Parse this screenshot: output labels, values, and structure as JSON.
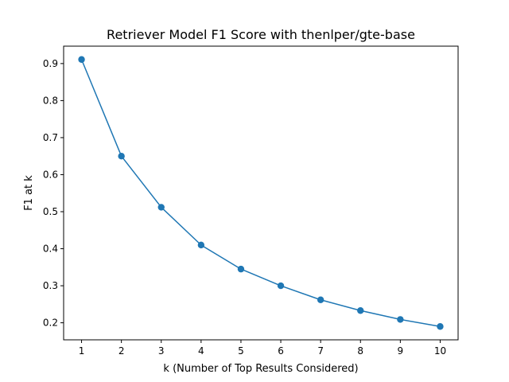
{
  "chart_data": {
    "type": "line",
    "title": "Retriever Model F1 Score with thenlper/gte-base",
    "xlabel": "k (Number of Top Results Considered)",
    "ylabel": "F1 at k",
    "x": [
      1,
      2,
      3,
      4,
      5,
      6,
      7,
      8,
      9,
      10
    ],
    "series": [
      {
        "values": [
          0.911,
          0.65,
          0.512,
          0.41,
          0.345,
          0.3,
          0.262,
          0.233,
          0.209,
          0.19
        ],
        "color": "#1f77b4",
        "marker": "circle"
      }
    ],
    "xlim": [
      0.55,
      10.45
    ],
    "ylim": [
      0.154,
      0.947
    ],
    "xticks": [
      1,
      2,
      3,
      4,
      5,
      6,
      7,
      8,
      9,
      10
    ],
    "yticks": [
      0.2,
      0.3,
      0.4,
      0.5,
      0.6,
      0.7,
      0.8,
      0.9
    ],
    "ytick_labels": [
      "0.2",
      "0.3",
      "0.4",
      "0.5",
      "0.6",
      "0.7",
      "0.8",
      "0.9"
    ],
    "grid": false,
    "legend": false
  }
}
